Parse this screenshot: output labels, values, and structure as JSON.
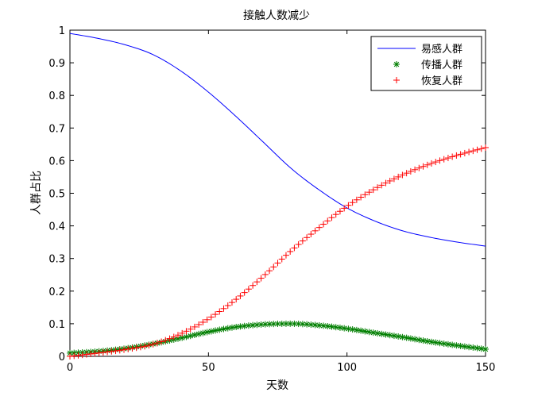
{
  "chart_data": {
    "type": "line",
    "title": "接触人数减少",
    "xlabel": "天数",
    "ylabel": "人群占比",
    "xlim": [
      0,
      150
    ],
    "ylim": [
      0,
      1
    ],
    "xticks": [
      "0",
      "50",
      "100",
      "150"
    ],
    "yticks": [
      "0",
      "0.1",
      "0.2",
      "0.3",
      "0.4",
      "0.5",
      "0.6",
      "0.7",
      "0.8",
      "0.9",
      "1"
    ],
    "grid": false,
    "legend_position": "top-right",
    "x": [
      0,
      10,
      20,
      30,
      40,
      50,
      60,
      70,
      80,
      90,
      100,
      110,
      120,
      130,
      140,
      150
    ],
    "series": [
      {
        "name": "易感人群",
        "style": "line",
        "color": "#0000ff",
        "values": [
          0.99,
          0.975,
          0.955,
          0.925,
          0.875,
          0.81,
          0.735,
          0.655,
          0.575,
          0.51,
          0.455,
          0.415,
          0.385,
          0.365,
          0.35,
          0.338
        ]
      },
      {
        "name": "传播人群",
        "style": "marker-star",
        "color": "#007f00",
        "values": [
          0.01,
          0.015,
          0.024,
          0.038,
          0.056,
          0.075,
          0.09,
          0.098,
          0.1,
          0.095,
          0.085,
          0.072,
          0.059,
          0.045,
          0.033,
          0.022
        ]
      },
      {
        "name": "恢复人群",
        "style": "marker-plus",
        "color": "#ff0000",
        "values": [
          0.0,
          0.01,
          0.021,
          0.037,
          0.069,
          0.115,
          0.175,
          0.247,
          0.325,
          0.395,
          0.46,
          0.513,
          0.556,
          0.59,
          0.617,
          0.64
        ]
      }
    ]
  }
}
